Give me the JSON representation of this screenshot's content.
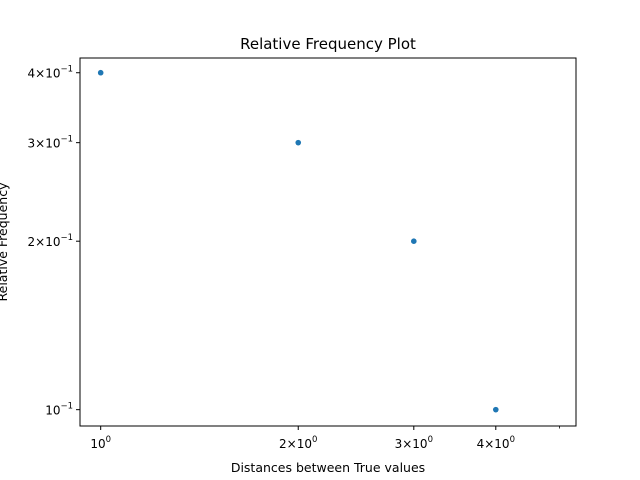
{
  "chart_data": {
    "type": "scatter",
    "title": "Relative Frequency Plot",
    "xlabel": "Distances between True values",
    "ylabel": "Relative Frequency",
    "x_scale": "log",
    "y_scale": "log",
    "xlim": [
      0.93,
      5.3
    ],
    "ylim": [
      0.0935,
      0.425
    ],
    "grid": false,
    "marker_color": "#1f77b4",
    "x_major_ticks": [
      {
        "value": 1,
        "mantissa": "",
        "exponent": "0"
      },
      {
        "value": 2,
        "mantissa": "2",
        "exponent": "0"
      },
      {
        "value": 3,
        "mantissa": "3",
        "exponent": "0"
      },
      {
        "value": 4,
        "mantissa": "4",
        "exponent": "0"
      }
    ],
    "x_minor_ticks": [
      5
    ],
    "y_major_ticks": [
      {
        "value": 0.1,
        "mantissa": "",
        "exponent": "−1"
      },
      {
        "value": 0.2,
        "mantissa": "2",
        "exponent": "−1"
      },
      {
        "value": 0.3,
        "mantissa": "3",
        "exponent": "−1"
      },
      {
        "value": 0.4,
        "mantissa": "4",
        "exponent": "−1"
      }
    ],
    "series": [
      {
        "x": [
          1,
          2,
          3,
          4
        ],
        "y": [
          0.4,
          0.3,
          0.2,
          0.1
        ]
      }
    ]
  }
}
